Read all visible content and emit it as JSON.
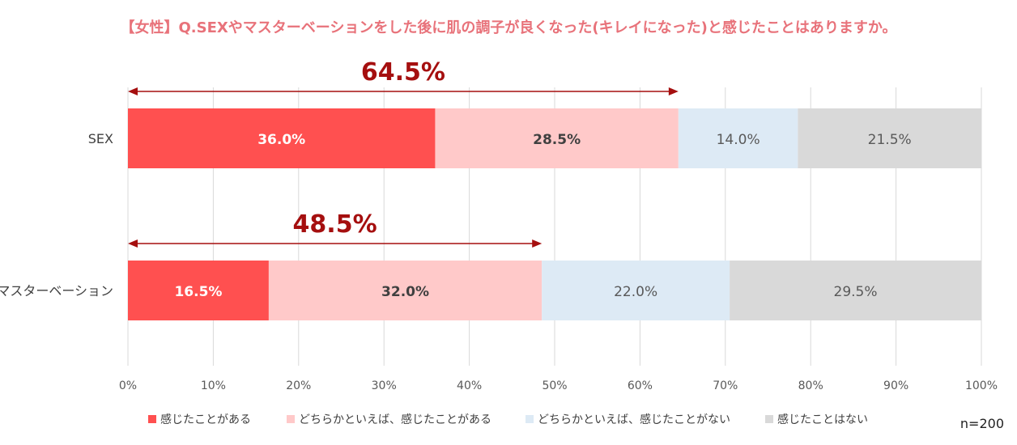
{
  "title": "【女性】Q.SEXやマスターベーションをした後に肌の調子が良くなった(キレイになった)と感じたことはありますか。",
  "n_label": "n=200",
  "chart_data": {
    "type": "bar",
    "orientation": "horizontal",
    "stacked": true,
    "percent": true,
    "categories": [
      "SEX",
      "マスターベーション"
    ],
    "series": [
      {
        "name": "感じたことがある",
        "values": [
          36.0,
          16.5
        ],
        "color": "#ff5050",
        "label_color": "#ffffff",
        "label_bold": true
      },
      {
        "name": "どちらかといえば、感じたことがある",
        "values": [
          28.5,
          32.0
        ],
        "color": "#ffc9c9",
        "label_color": "#404040",
        "label_bold": true
      },
      {
        "name": "どちらかといえば、感じたことがない",
        "values": [
          14.0,
          22.0
        ],
        "color": "#ddeaf5",
        "label_color": "#595959",
        "label_bold": false
      },
      {
        "name": "感じたことはない",
        "values": [
          21.5,
          29.5
        ],
        "color": "#d9d9d9",
        "label_color": "#595959",
        "label_bold": false
      }
    ],
    "value_labels": [
      [
        "36.0%",
        "16.5%"
      ],
      [
        "28.5%",
        "32.0%"
      ],
      [
        "14.0%",
        "22.0%"
      ],
      [
        "21.5%",
        "29.5%"
      ]
    ],
    "annotations": [
      {
        "category": "SEX",
        "text": "64.5%",
        "from": 0,
        "to": 64.5
      },
      {
        "category": "マスターベーション",
        "text": "48.5%",
        "from": 0,
        "to": 48.5
      }
    ],
    "xlim": [
      0,
      100
    ],
    "xticks": [
      0,
      10,
      20,
      30,
      40,
      50,
      60,
      70,
      80,
      90,
      100
    ],
    "xtick_labels": [
      "0%",
      "10%",
      "20%",
      "30%",
      "40%",
      "50%",
      "60%",
      "70%",
      "80%",
      "90%",
      "100%"
    ],
    "grid": true,
    "legend_position": "bottom",
    "accent_color": "#a50f0f",
    "grid_color": "#d9d9d9"
  }
}
